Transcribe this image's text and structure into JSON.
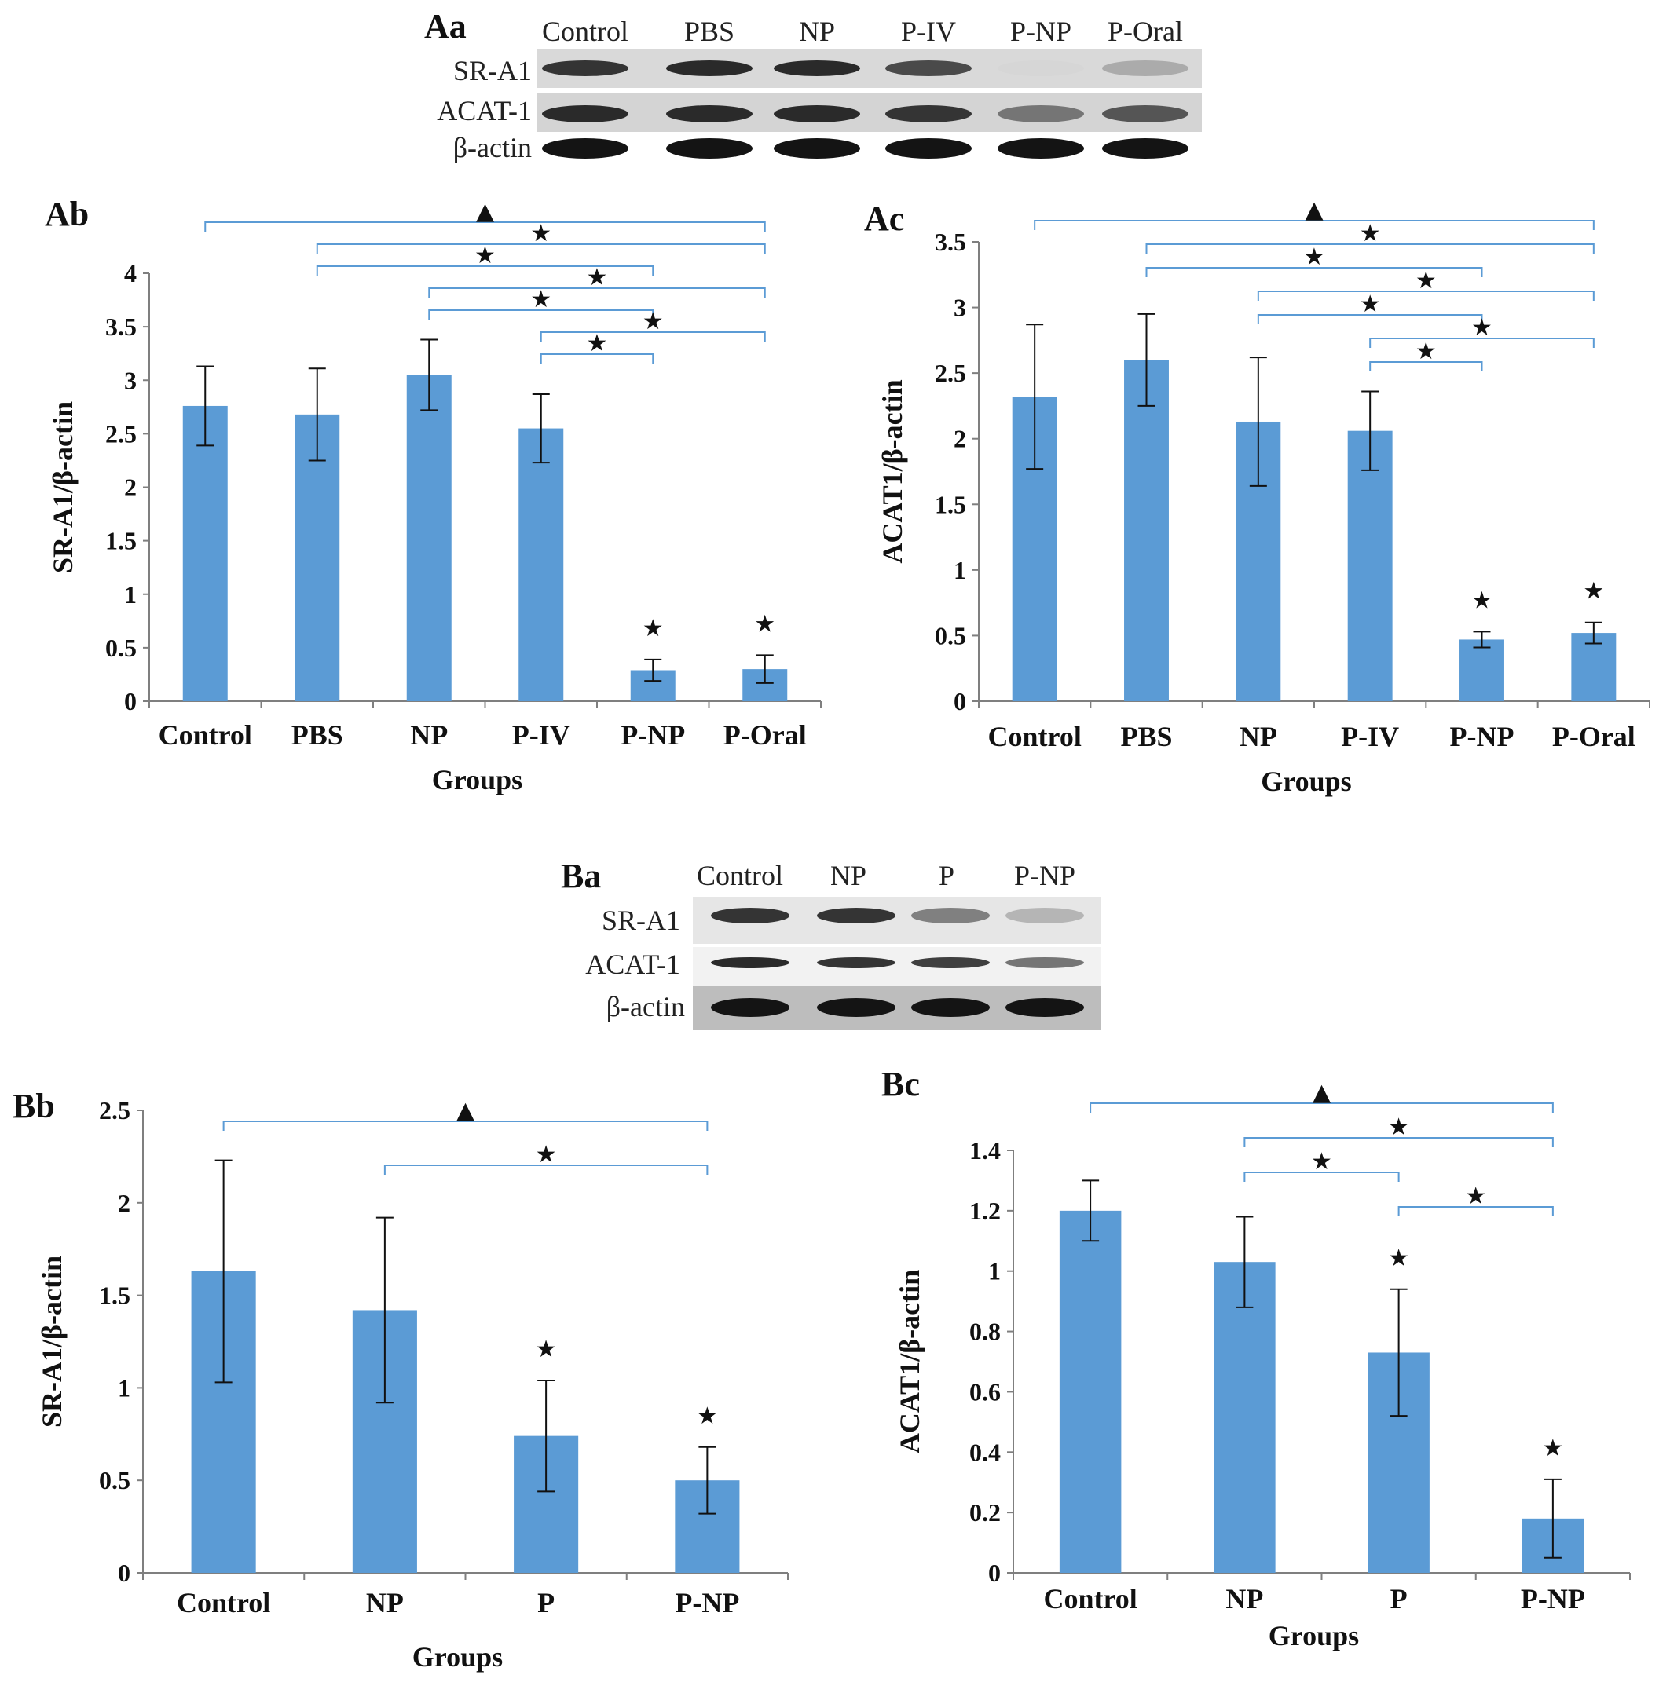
{
  "colors": {
    "bar": "#5B9BD5",
    "bracket": "#5B9BD5",
    "axis": "#7f7f7f",
    "text": "#111111"
  },
  "markers": {
    "star": "★",
    "triangle": "▲"
  },
  "blots": [
    {
      "panel_label": "Aa",
      "lanes": [
        "Control",
        "PBS",
        "NP",
        "P-IV",
        "P-NP",
        "P-Oral"
      ],
      "rows": [
        {
          "label": "SR-A1",
          "intensities": [
            0.85,
            0.9,
            0.9,
            0.75,
            0.1,
            0.3
          ]
        },
        {
          "label": "ACAT-1",
          "intensities": [
            0.9,
            0.9,
            0.9,
            0.85,
            0.55,
            0.7
          ]
        },
        {
          "label": "β-actin",
          "intensities": [
            1,
            1,
            1,
            1,
            1,
            1
          ]
        }
      ]
    },
    {
      "panel_label": "Ba",
      "lanes": [
        "Control",
        "NP",
        "P",
        "P-NP"
      ],
      "rows": [
        {
          "label": "SR-A1",
          "intensities": [
            0.85,
            0.85,
            0.5,
            0.25
          ]
        },
        {
          "label": "ACAT-1",
          "intensities": [
            0.9,
            0.85,
            0.8,
            0.55
          ]
        },
        {
          "label": "β-actin",
          "intensities": [
            1,
            1,
            1,
            1
          ]
        }
      ]
    }
  ],
  "chart_data": [
    {
      "panel_label": "Ab",
      "type": "bar",
      "categories": [
        "Control",
        "PBS",
        "NP",
        "P-IV",
        "P-NP",
        "P-Oral"
      ],
      "values": [
        2.76,
        2.68,
        3.05,
        2.55,
        0.29,
        0.3
      ],
      "errors": [
        0.37,
        0.43,
        0.33,
        0.32,
        0.1,
        0.13
      ],
      "bar_markers": [
        "",
        "",
        "",
        "",
        "★",
        "★"
      ],
      "ylabel": "SR-A1/β-actin",
      "xlabel": "Groups",
      "ylim": [
        0,
        4
      ],
      "yticks": [
        "0",
        "0.5",
        "1",
        "1.5",
        "2",
        "2.5",
        "3",
        "3.5",
        "4"
      ],
      "ystep": 0.5,
      "comparisons": [
        {
          "from": 0,
          "to": 5,
          "marker": "▲"
        },
        {
          "from": 1,
          "to": 5,
          "marker": "★"
        },
        {
          "from": 1,
          "to": 4,
          "marker": "★"
        },
        {
          "from": 2,
          "to": 5,
          "marker": "★"
        },
        {
          "from": 2,
          "to": 4,
          "marker": "★"
        },
        {
          "from": 3,
          "to": 5,
          "marker": "★"
        },
        {
          "from": 3,
          "to": 4,
          "marker": "★"
        }
      ]
    },
    {
      "panel_label": "Ac",
      "type": "bar",
      "categories": [
        "Control",
        "PBS",
        "NP",
        "P-IV",
        "P-NP",
        "P-Oral"
      ],
      "values": [
        2.32,
        2.6,
        2.13,
        2.06,
        0.47,
        0.52
      ],
      "errors": [
        0.55,
        0.35,
        0.49,
        0.3,
        0.06,
        0.08
      ],
      "bar_markers": [
        "",
        "",
        "",
        "",
        "★",
        "★"
      ],
      "ylabel": "ACAT1/β-actin",
      "xlabel": "Groups",
      "ylim": [
        0,
        3.5
      ],
      "yticks": [
        "0",
        "0.5",
        "1",
        "1.5",
        "2",
        "2.5",
        "3",
        "3.5"
      ],
      "ystep": 0.5,
      "comparisons": [
        {
          "from": 0,
          "to": 5,
          "marker": "▲"
        },
        {
          "from": 1,
          "to": 5,
          "marker": "★"
        },
        {
          "from": 1,
          "to": 4,
          "marker": "★"
        },
        {
          "from": 2,
          "to": 5,
          "marker": "★"
        },
        {
          "from": 2,
          "to": 4,
          "marker": "★"
        },
        {
          "from": 3,
          "to": 5,
          "marker": "★"
        },
        {
          "from": 3,
          "to": 4,
          "marker": "★"
        }
      ]
    },
    {
      "panel_label": "Bb",
      "type": "bar",
      "categories": [
        "Control",
        "NP",
        "P",
        "P-NP"
      ],
      "values": [
        1.63,
        1.42,
        0.74,
        0.5
      ],
      "errors": [
        0.6,
        0.5,
        0.3,
        0.18
      ],
      "bar_markers": [
        "",
        "",
        "★",
        "★"
      ],
      "ylabel": "SR-A1/β-actin",
      "xlabel": "Groups",
      "ylim": [
        0,
        2.5
      ],
      "yticks": [
        "0",
        "0.5",
        "1",
        "1.5",
        "2",
        "2.5"
      ],
      "ystep": 0.5,
      "comparisons": [
        {
          "from": 0,
          "to": 3,
          "marker": "▲"
        },
        {
          "from": 1,
          "to": 3,
          "marker": "★"
        }
      ]
    },
    {
      "panel_label": "Bc",
      "type": "bar",
      "categories": [
        "Control",
        "NP",
        "P",
        "P-NP"
      ],
      "values": [
        1.2,
        1.03,
        0.73,
        0.18
      ],
      "errors": [
        0.1,
        0.15,
        0.21,
        0.13
      ],
      "bar_markers": [
        "",
        "",
        "★",
        "★"
      ],
      "ylabel": "ACAT1/β-actin",
      "xlabel": "Groups",
      "ylim": [
        0,
        1.4
      ],
      "yticks": [
        "0",
        "0.2",
        "0.4",
        "0.6",
        "0.8",
        "1",
        "1.2",
        "1.4"
      ],
      "ystep": 0.2,
      "comparisons": [
        {
          "from": 0,
          "to": 3,
          "marker": "▲"
        },
        {
          "from": 1,
          "to": 3,
          "marker": "★"
        },
        {
          "from": 1,
          "to": 2,
          "marker": "★"
        },
        {
          "from": 2,
          "to": 3,
          "marker": "★"
        }
      ]
    }
  ]
}
